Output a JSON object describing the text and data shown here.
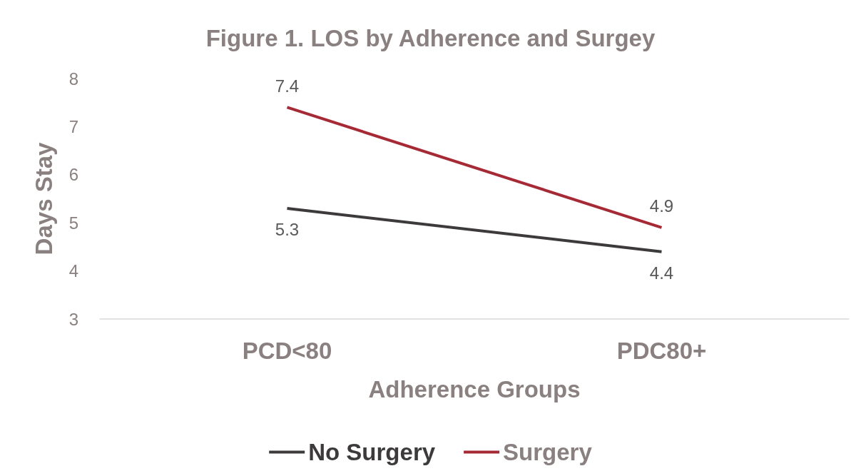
{
  "chart_data": {
    "type": "line",
    "title": "Figure 1. LOS by Adherence and Surgey",
    "xlabel": "Adherence Groups",
    "ylabel": "Days Stay",
    "categories": [
      "PCD<80",
      "PDC80+"
    ],
    "series": [
      {
        "name": "No Surgery",
        "color": "#3d3a3b",
        "values": [
          5.3,
          4.4
        ]
      },
      {
        "name": "Surgery",
        "color": "#a52a35",
        "values": [
          7.4,
          4.9
        ]
      }
    ],
    "ylim": [
      3,
      8
    ],
    "yticks": [
      3,
      4,
      5,
      6,
      7,
      8
    ],
    "grid": false,
    "legend": "bottom",
    "data_labels": true,
    "marker": "none",
    "line_style": "solid"
  }
}
